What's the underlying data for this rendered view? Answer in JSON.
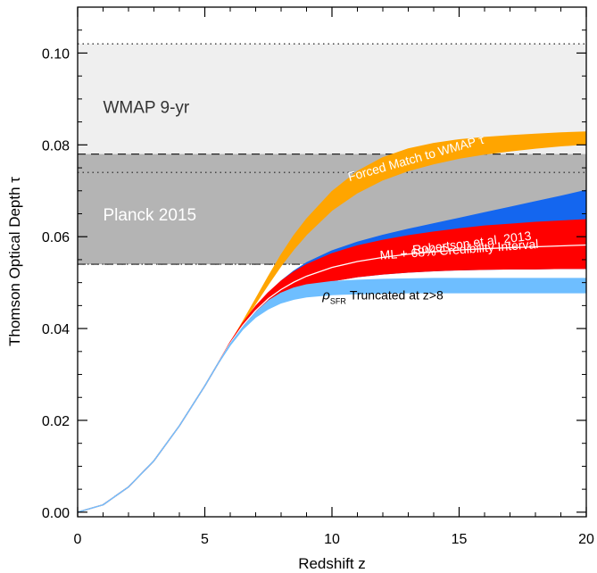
{
  "chart_data": {
    "type": "line",
    "xlabel": "Redshift z",
    "ylabel": "Thomson Optical Depth τ",
    "xlim": [
      0,
      20
    ],
    "ylim": [
      -0.001,
      0.11
    ],
    "xticks": [
      0,
      5,
      10,
      15,
      20
    ],
    "xtick_labels": [
      "0",
      "5",
      "10",
      "15",
      "20"
    ],
    "yticks": [
      0.0,
      0.02,
      0.04,
      0.06,
      0.08,
      0.1
    ],
    "ytick_labels": [
      "0.00",
      "0.02",
      "0.04",
      "0.06",
      "0.08",
      "0.10"
    ],
    "x_minor_step": 1,
    "y_minor_step": 0.005,
    "grid": false,
    "bands": [
      {
        "name": "WMAP 9-yr",
        "low": 0.054,
        "high": 0.102,
        "fill": "#efefef",
        "line_style": "dotted",
        "label_color": "#333333",
        "label_at": [
          1.0,
          0.087
        ]
      },
      {
        "name": "Planck 2015",
        "low": 0.054,
        "high": 0.078,
        "fill": "#b4b4b4",
        "line_style": "dashed",
        "label_color": "#ffffff",
        "label_at": [
          1.0,
          0.0635
        ]
      }
    ],
    "reference_lines": [
      {
        "y": 0.074,
        "style": "dotted"
      }
    ],
    "x": [
      0,
      1,
      2,
      3,
      4,
      5,
      5.5,
      6,
      6.5,
      7,
      7.5,
      8,
      8.5,
      9,
      10,
      11,
      12,
      13,
      14,
      15,
      16,
      17,
      18,
      19,
      20
    ],
    "series": [
      {
        "name": "Forced Match to WMAP τ",
        "color": "#ffa500",
        "label_color": "#ffffff",
        "label_anchor_x": 13.3,
        "lower": [
          0,
          0.0016,
          0.0055,
          0.0112,
          0.0188,
          0.0275,
          0.0322,
          0.0368,
          0.0412,
          0.0455,
          0.0497,
          0.0537,
          0.0573,
          0.0605,
          0.0658,
          0.0696,
          0.0724,
          0.0744,
          0.0759,
          0.0771,
          0.078,
          0.0787,
          0.0793,
          0.0798,
          0.0802
        ],
        "upper": [
          0,
          0.0016,
          0.0055,
          0.0112,
          0.0188,
          0.0275,
          0.0322,
          0.0368,
          0.0415,
          0.0464,
          0.0513,
          0.056,
          0.0602,
          0.0638,
          0.0698,
          0.0742,
          0.0772,
          0.0791,
          0.0803,
          0.0811,
          0.0816,
          0.082,
          0.0823,
          0.0826,
          0.0828
        ]
      },
      {
        "name": "Robertson et al. 2013",
        "color": "#1466ef",
        "label_color": "#ffffff",
        "label_anchor_x": 15.5,
        "lower": [
          0,
          0.0016,
          0.0055,
          0.0112,
          0.0188,
          0.0275,
          0.0322,
          0.0368,
          0.0404,
          0.043,
          0.0451,
          0.0467,
          0.048,
          0.049,
          0.0504,
          0.0513,
          0.0519,
          0.0523,
          0.0526,
          0.0528,
          0.0529,
          0.053,
          0.053,
          0.0531,
          0.0531
        ],
        "upper": [
          0,
          0.0016,
          0.0055,
          0.0112,
          0.0188,
          0.0275,
          0.0322,
          0.0368,
          0.041,
          0.0446,
          0.0477,
          0.0503,
          0.0525,
          0.0543,
          0.0569,
          0.0588,
          0.0603,
          0.0616,
          0.0628,
          0.064,
          0.0652,
          0.0664,
          0.0676,
          0.0688,
          0.0701
        ]
      },
      {
        "name": "ML + 68% Credibility Interval",
        "color": "#ff0000",
        "label_color": "#ffffff",
        "label_anchor_x": 15.0,
        "lower": [
          0,
          0.0016,
          0.0055,
          0.0112,
          0.0188,
          0.0275,
          0.0322,
          0.0366,
          0.0402,
          0.043,
          0.0451,
          0.0467,
          0.048,
          0.049,
          0.0504,
          0.0513,
          0.0519,
          0.0523,
          0.0526,
          0.0528,
          0.0529,
          0.053,
          0.053,
          0.0531,
          0.0531
        ],
        "upper": [
          0,
          0.0016,
          0.0055,
          0.0112,
          0.0188,
          0.0275,
          0.0322,
          0.037,
          0.0412,
          0.0448,
          0.0478,
          0.0503,
          0.0523,
          0.0539,
          0.0563,
          0.058,
          0.0592,
          0.0602,
          0.061,
          0.0617,
          0.0623,
          0.0627,
          0.0631,
          0.0634,
          0.0637
        ],
        "ml": [
          0,
          0.0016,
          0.0055,
          0.0112,
          0.0188,
          0.0275,
          0.0322,
          0.0368,
          0.0407,
          0.0439,
          0.0465,
          0.0485,
          0.0501,
          0.0514,
          0.0533,
          0.0546,
          0.0555,
          0.0562,
          0.0567,
          0.0571,
          0.0574,
          0.0576,
          0.0578,
          0.058,
          0.0582
        ]
      },
      {
        "name_symbol": "ρ",
        "name_subscript": "SFR",
        "name_text": "Truncated at z>8",
        "color": "#6ebeff",
        "label_color": "#000000",
        "label_anchor_x": 12.0,
        "lower": [
          0,
          0.0016,
          0.0055,
          0.0112,
          0.0188,
          0.0275,
          0.0322,
          0.0364,
          0.0399,
          0.0425,
          0.0443,
          0.0456,
          0.0464,
          0.0469,
          0.0474,
          0.0476,
          0.0477,
          0.0478,
          0.0478,
          0.0478,
          0.0478,
          0.0478,
          0.0478,
          0.0478,
          0.0478
        ],
        "upper": [
          0,
          0.0016,
          0.0055,
          0.0112,
          0.0188,
          0.0275,
          0.0322,
          0.0366,
          0.0403,
          0.0435,
          0.046,
          0.0477,
          0.0488,
          0.0495,
          0.0502,
          0.0505,
          0.0507,
          0.0508,
          0.0509,
          0.0509,
          0.0509,
          0.0509,
          0.0509,
          0.0509,
          0.0509
        ]
      }
    ]
  }
}
